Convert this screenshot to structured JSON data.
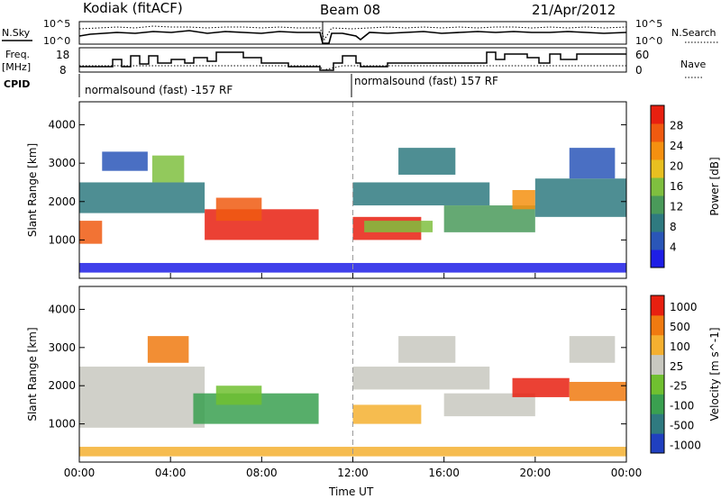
{
  "header": {
    "station": "Kodiak (fitACF)",
    "beam": "Beam 08",
    "date": "21/Apr/2012"
  },
  "strips": {
    "nsky_label": "N.Sky",
    "nsky_ticks": [
      "10^5",
      "10^0"
    ],
    "nsearch_label": "N.Search",
    "nsearch_ticks": [
      "10^5",
      "10^0"
    ],
    "freq_label": "Freq.",
    "freq_unit": "[MHz]",
    "freq_ticks": [
      "18",
      "8"
    ],
    "nave_label": "Nave",
    "nave_ticks": [
      "60",
      "0"
    ],
    "cpid_label": "CPID",
    "cpid_segments": [
      "normalsound (fast) -157 RF",
      "normalsound (fast) 157 RF"
    ]
  },
  "icons": {
    "legend_dotted_line": "dotted-line-icon"
  },
  "chart_data": [
    {
      "type": "heatmap",
      "panel": "power",
      "ylabel": "Slant Range [km]",
      "y_ticks": [
        "1000",
        "2000",
        "3000",
        "4000"
      ],
      "ylim": [
        0,
        4600
      ],
      "xlim": [
        0,
        24
      ],
      "x_ticks": [
        "00:00",
        "04:00",
        "08:00",
        "12:00",
        "16:00",
        "20:00",
        "00:00"
      ],
      "colorbar": {
        "label": "Power [dB]",
        "ticks": [
          "4",
          "8",
          "12",
          "16",
          "20",
          "24",
          "28"
        ],
        "colors": [
          "#1e1ee6",
          "#2a56b8",
          "#2f7a80",
          "#4a9a5a",
          "#7fbf3f",
          "#e8c020",
          "#f59010",
          "#f05a10",
          "#e82010"
        ]
      },
      "regions": [
        {
          "x0": 0.0,
          "x1": 1.0,
          "y0": 900,
          "y1": 1500,
          "level": 7
        },
        {
          "x0": 0.0,
          "x1": 5.5,
          "y0": 1700,
          "y1": 2500,
          "level": 2
        },
        {
          "x0": 1.0,
          "x1": 3.0,
          "y0": 2800,
          "y1": 3300,
          "level": 1
        },
        {
          "x0": 3.2,
          "x1": 4.6,
          "y0": 2500,
          "y1": 3200,
          "level": 4
        },
        {
          "x0": 5.5,
          "x1": 10.5,
          "y0": 1000,
          "y1": 1800,
          "level": 8
        },
        {
          "x0": 6.0,
          "x1": 8.0,
          "y0": 1500,
          "y1": 2100,
          "level": 7
        },
        {
          "x0": 12.0,
          "x1": 15.0,
          "y0": 1000,
          "y1": 1600,
          "level": 8
        },
        {
          "x0": 12.5,
          "x1": 15.5,
          "y0": 1200,
          "y1": 1500,
          "level": 4
        },
        {
          "x0": 12.0,
          "x1": 18.0,
          "y0": 1900,
          "y1": 2500,
          "level": 2
        },
        {
          "x0": 14.0,
          "x1": 16.5,
          "y0": 2700,
          "y1": 3400,
          "level": 2
        },
        {
          "x0": 16.0,
          "x1": 20.0,
          "y0": 1200,
          "y1": 1900,
          "level": 3
        },
        {
          "x0": 19.0,
          "x1": 20.0,
          "y0": 1800,
          "y1": 2300,
          "level": 6
        },
        {
          "x0": 20.0,
          "x1": 24.0,
          "y0": 1600,
          "y1": 2600,
          "level": 2
        },
        {
          "x0": 21.5,
          "x1": 23.5,
          "y0": 2600,
          "y1": 3400,
          "level": 1
        },
        {
          "x0": 0.0,
          "x1": 24.0,
          "y0": 150,
          "y1": 400,
          "level": 0
        }
      ]
    },
    {
      "type": "heatmap",
      "panel": "velocity",
      "ylabel": "Slant Range [km]",
      "y_ticks": [
        "1000",
        "2000",
        "3000",
        "4000"
      ],
      "ylim": [
        0,
        4600
      ],
      "xlim": [
        0,
        24
      ],
      "x_ticks": [
        "00:00",
        "04:00",
        "08:00",
        "12:00",
        "16:00",
        "20:00",
        "00:00"
      ],
      "xlabel": "Time UT",
      "colorbar": {
        "label": "Velocity [m s^-1]",
        "ticks": [
          "1000",
          "500",
          "100",
          "25",
          "-25",
          "-100",
          "-500",
          "-1000"
        ],
        "colors": [
          "#2040c0",
          "#2f7a80",
          "#3aa050",
          "#70c030",
          "#c8c8c0",
          "#f5b030",
          "#f07a10",
          "#e82010"
        ]
      },
      "regions": [
        {
          "x0": 0.0,
          "x1": 5.5,
          "y0": 900,
          "y1": 2500,
          "level": 4
        },
        {
          "x0": 3.0,
          "x1": 4.8,
          "y0": 2600,
          "y1": 3300,
          "level": 6
        },
        {
          "x0": 5.0,
          "x1": 10.5,
          "y0": 1000,
          "y1": 1800,
          "level": 2
        },
        {
          "x0": 6.0,
          "x1": 8.0,
          "y0": 1500,
          "y1": 2000,
          "level": 3
        },
        {
          "x0": 12.0,
          "x1": 15.0,
          "y0": 1000,
          "y1": 1500,
          "level": 5
        },
        {
          "x0": 12.0,
          "x1": 18.0,
          "y0": 1900,
          "y1": 2500,
          "level": 4
        },
        {
          "x0": 14.0,
          "x1": 16.5,
          "y0": 2600,
          "y1": 3300,
          "level": 4
        },
        {
          "x0": 16.0,
          "x1": 20.0,
          "y0": 1200,
          "y1": 1800,
          "level": 4
        },
        {
          "x0": 19.0,
          "x1": 21.5,
          "y0": 1700,
          "y1": 2200,
          "level": 7
        },
        {
          "x0": 21.5,
          "x1": 24.0,
          "y0": 1600,
          "y1": 2100,
          "level": 6
        },
        {
          "x0": 21.5,
          "x1": 23.5,
          "y0": 2600,
          "y1": 3300,
          "level": 4
        },
        {
          "x0": 0.0,
          "x1": 24.0,
          "y0": 150,
          "y1": 400,
          "level": 5
        }
      ]
    }
  ]
}
